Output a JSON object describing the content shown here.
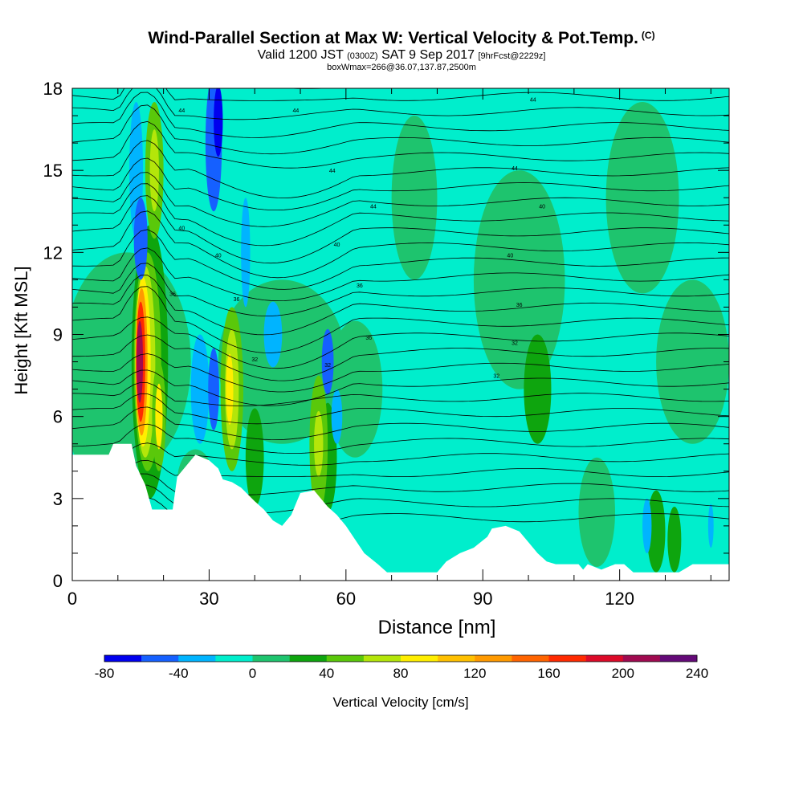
{
  "chart_data": {
    "type": "heatmap",
    "title": "Wind-Parallel Section at Max W: Vertical Velocity & Pot.Temp.",
    "copyright": "(C)",
    "subtitle_main": "Valid 1200 JST",
    "subtitle_utc": "(0300Z)",
    "subtitle_date": "SAT 9 Sep 2017",
    "subtitle_fcst": "[9hrFcst@2229z]",
    "subtitle2": "boxWmax=266@36.07,137.87,2500m",
    "xlabel": "Distance [nm]",
    "ylabel": "Height [Kft MSL]",
    "xlim": [
      0,
      144
    ],
    "ylim": [
      0,
      18
    ],
    "x_ticks": [
      "0",
      "30",
      "60",
      "90",
      "120"
    ],
    "y_ticks": [
      "0",
      "3",
      "6",
      "9",
      "12",
      "15",
      "18"
    ],
    "colorbar_label": "Vertical Velocity [cm/s]",
    "colorbar_ticks": [
      "-80",
      "-40",
      "0",
      "40",
      "80",
      "120",
      "160",
      "200",
      "240"
    ],
    "colorbar_colors": [
      "#0000ee",
      "#1560ff",
      "#00b4ff",
      "#00eecc",
      "#1ec46e",
      "#0ea50e",
      "#5ac80a",
      "#b4e60a",
      "#ffee00",
      "#ffc000",
      "#ff9a00",
      "#ff6400",
      "#ff2a00",
      "#dc0a28",
      "#a00a50",
      "#640a78"
    ],
    "colorbar_range": [
      -80,
      240
    ],
    "background_color": "#00eecc",
    "terrain_kft": [
      [
        0,
        4.6
      ],
      [
        8,
        4.6
      ],
      [
        9,
        5
      ],
      [
        13,
        5
      ],
      [
        14,
        4.2
      ],
      [
        16,
        3.5
      ],
      [
        17,
        2.9
      ],
      [
        17.5,
        2.6
      ],
      [
        22,
        2.6
      ],
      [
        23,
        3.8
      ],
      [
        27,
        4.6
      ],
      [
        30,
        4.4
      ],
      [
        32,
        4.1
      ],
      [
        33,
        3.7
      ],
      [
        35,
        3.6
      ],
      [
        37,
        3.4
      ],
      [
        40,
        2.9
      ],
      [
        42,
        2.6
      ],
      [
        44,
        2.2
      ],
      [
        46,
        2.0
      ],
      [
        48,
        2.4
      ],
      [
        50,
        3.2
      ],
      [
        53,
        3.3
      ],
      [
        55,
        2.9
      ],
      [
        56,
        2.7
      ],
      [
        58,
        2.4
      ],
      [
        60,
        2.0
      ],
      [
        62,
        1.5
      ],
      [
        64,
        1.0
      ],
      [
        67,
        0.6
      ],
      [
        69,
        0.3
      ],
      [
        80,
        0.3
      ],
      [
        82,
        0.7
      ],
      [
        85,
        1.0
      ],
      [
        88,
        1.2
      ],
      [
        91,
        1.6
      ],
      [
        92,
        1.9
      ],
      [
        95,
        2.0
      ],
      [
        98,
        1.8
      ],
      [
        100,
        1.4
      ],
      [
        102,
        1.0
      ],
      [
        104,
        0.7
      ],
      [
        106,
        0.6
      ],
      [
        111,
        0.6
      ],
      [
        112,
        0.4
      ],
      [
        113,
        0.6
      ],
      [
        116,
        0.4
      ],
      [
        119,
        0.6
      ],
      [
        121,
        0.6
      ],
      [
        123,
        0.3
      ],
      [
        133,
        0.3
      ],
      [
        136,
        0.6
      ],
      [
        144,
        0.6
      ]
    ],
    "isentrope_labels": [
      "44",
      "44",
      "44",
      "44",
      "44",
      "44",
      "40",
      "40",
      "40",
      "40",
      "40",
      "36",
      "36",
      "36",
      "36",
      "36",
      "32",
      "32",
      "32",
      "32"
    ]
  }
}
